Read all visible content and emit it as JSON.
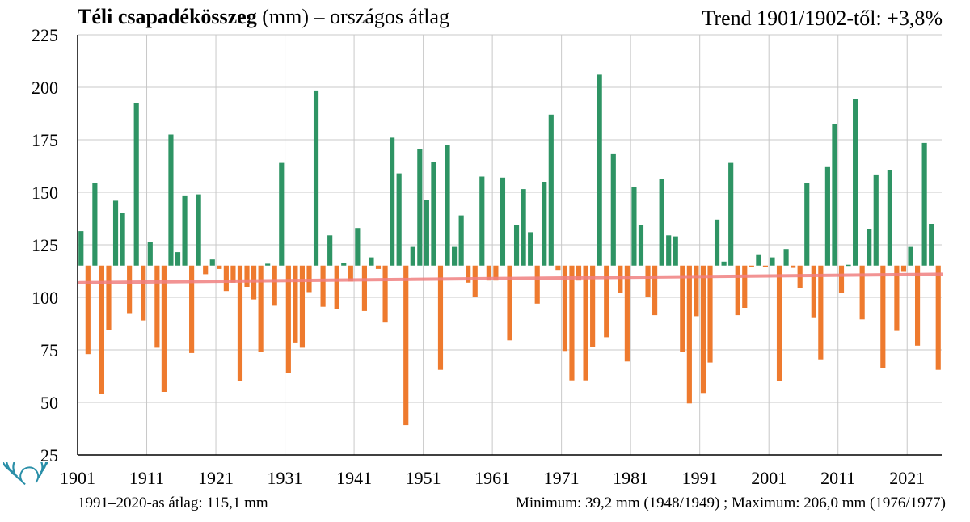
{
  "header": {
    "title_bold": "Téli csapadékösszeg",
    "title_rest": " (mm) – országos átlag",
    "trend": "Trend 1901/1902-től: +3,8%"
  },
  "footer": {
    "average": "1991–2020-as átlag:  115,1 mm",
    "min_max": "Minimum:  39,2 mm (1948/1949)  ; Maximum:  206,0 mm (1976/1977)"
  },
  "colors": {
    "above_average": "#2e9464",
    "below_average": "#ee7a2e",
    "trend_line": "#f08080",
    "grid": "#c8c8c8",
    "logo": "#2a8fa8"
  },
  "chart_data": {
    "type": "bar",
    "baseline": 115.1,
    "ylim": [
      25,
      225
    ],
    "yticks": [
      25,
      50,
      75,
      100,
      125,
      150,
      175,
      200,
      225
    ],
    "xticks": [
      "1901",
      "1911",
      "1921",
      "1931",
      "1941",
      "1951",
      "1961",
      "1971",
      "1981",
      "1991",
      "2001",
      "2011",
      "2021"
    ],
    "start_year": 1901,
    "grid": true,
    "trend": {
      "name": "Trend",
      "start": 107,
      "end": 111
    },
    "series": [
      {
        "values": [
          131.5,
          73,
          154.5,
          54,
          84.5,
          146,
          140,
          92.5,
          192.5,
          89,
          126.5,
          76,
          55,
          177.5,
          121.5,
          148.5,
          73.5,
          149,
          111,
          118,
          113.5,
          103,
          107,
          60,
          105,
          99,
          74,
          116,
          96,
          164,
          64,
          78.5,
          76,
          102.5,
          198.5,
          95.5,
          129.5,
          94.5,
          116.5,
          107.5,
          133,
          93.5,
          119,
          113.5,
          88,
          176,
          159,
          39.2,
          124,
          170.5,
          146.5,
          164.5,
          65.5,
          172.5,
          124,
          139,
          107,
          100,
          157.5,
          108,
          108,
          157,
          79.5,
          134.5,
          151.5,
          131,
          97,
          155,
          187,
          113,
          74.5,
          60.5,
          108,
          60.5,
          76.5,
          206,
          81,
          168.5,
          102,
          69.5,
          152.5,
          134.5,
          100,
          91.5,
          156.5,
          129.5,
          129,
          74,
          49.5,
          91,
          54.5,
          69,
          137,
          117,
          164,
          91.5,
          95,
          114.5,
          120.5,
          115,
          119,
          60,
          123,
          114,
          104.5,
          154.5,
          90.5,
          70.5,
          162,
          182.5,
          102,
          115.5,
          194.5,
          89.5,
          132.5,
          158.5,
          66.5,
          160.5,
          84,
          112.5,
          124,
          77,
          173.5,
          135,
          65.5
        ]
      }
    ]
  }
}
